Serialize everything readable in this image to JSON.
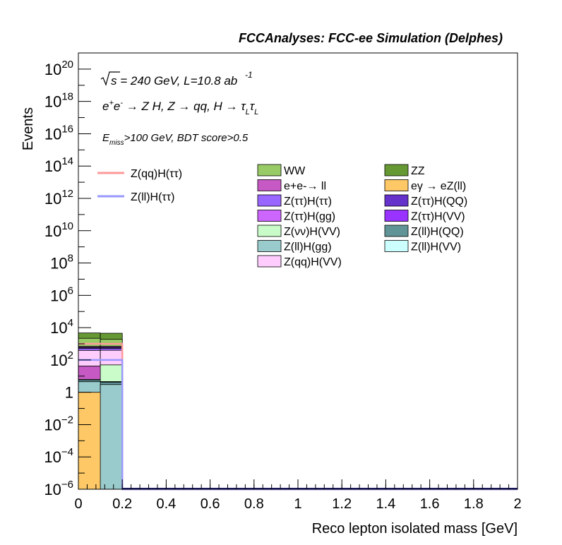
{
  "chart_data": {
    "type": "bar",
    "title": "FCCAnalyses: FCC-ee Simulation (Delphes)",
    "xlabel": "Reco lepton isolated mass [GeV]",
    "ylabel": "Events",
    "xlim": [
      0,
      2
    ],
    "ylim_log10": [
      -6,
      21
    ],
    "log_y": true,
    "x_ticks": [
      "0",
      "0.2",
      "0.4",
      "0.6",
      "0.8",
      "1",
      "1.2",
      "1.4",
      "1.6",
      "1.8",
      "2"
    ],
    "x_tick_values": [
      0,
      0.2,
      0.4,
      0.6,
      0.8,
      1,
      1.2,
      1.4,
      1.6,
      1.8,
      2
    ],
    "y_ticks": [
      {
        "v": -6,
        "base": "10",
        "exp": "−6"
      },
      {
        "v": -4,
        "base": "10",
        "exp": "−4"
      },
      {
        "v": -2,
        "base": "10",
        "exp": "−2"
      },
      {
        "v": 0,
        "base": "1",
        "exp": ""
      },
      {
        "v": 2,
        "base": "10",
        "exp": "2"
      },
      {
        "v": 4,
        "base": "10",
        "exp": "4"
      },
      {
        "v": 6,
        "base": "10",
        "exp": "6"
      },
      {
        "v": 8,
        "base": "10",
        "exp": "8"
      },
      {
        "v": 10,
        "base": "10",
        "exp": "10"
      },
      {
        "v": 12,
        "base": "10",
        "exp": "12"
      },
      {
        "v": 14,
        "base": "10",
        "exp": "14"
      },
      {
        "v": 16,
        "base": "10",
        "exp": "16"
      },
      {
        "v": 18,
        "base": "10",
        "exp": "18"
      },
      {
        "v": 20,
        "base": "10",
        "exp": "20"
      }
    ],
    "annotations": {
      "line1_prefix": "s = 240 GeV, L=10.8 ab",
      "line1_sup": "-1",
      "line2": "e+e- → Z H, Z → qq, H → τLτL",
      "line3_main": "E",
      "line3_sub": "miss",
      "line3_rest": ">100 GeV, BDT score>0.5"
    },
    "bins": [
      0,
      0.1,
      0.2
    ],
    "stack_series": [
      {
        "name": "eγ → eZ(ll)",
        "color": "#fdc865",
        "values": [
          1,
          0
        ]
      },
      {
        "name": "Z(ll)H(gg)",
        "color": "#99cbcc",
        "values": [
          3.5,
          3
        ]
      },
      {
        "name": "Z(ll)H(QQ)",
        "color": "#609497",
        "values": [
          1.3,
          1.2
        ]
      },
      {
        "name": "Z(ll)H(VV)",
        "color": "#ccfefe",
        "values": [
          0.5,
          0.4
        ]
      },
      {
        "name": "e+e-→ ll",
        "color": "#c759c5",
        "values": [
          35,
          0
        ]
      },
      {
        "name": "Z(νν)H(VV)",
        "color": "#c9fcc9",
        "values": [
          0,
          45
        ]
      },
      {
        "name": "Z(qq)H(VV)",
        "color": "#fecdfe",
        "values": [
          350,
          350
        ]
      },
      {
        "name": "Z(ττ)H(ττ)",
        "color": "#9966ff",
        "values": [
          120,
          120
        ]
      },
      {
        "name": "Z(ττ)H(QQ)",
        "color": "#6533cb",
        "values": [
          60,
          60
        ]
      },
      {
        "name": "Z(ττ)H(gg)",
        "color": "#cc66fe",
        "values": [
          80,
          80
        ]
      },
      {
        "name": "Z(ττ)H(VV)",
        "color": "#9933ff",
        "values": [
          40,
          40
        ]
      },
      {
        "name": "WW",
        "color": "#98cb66",
        "values": [
          1500,
          1200
        ]
      },
      {
        "name": "ZZ",
        "color": "#669933",
        "values": [
          2500,
          2600
        ]
      }
    ],
    "line_series": [
      {
        "name": "Z(qq)H(ττ)",
        "color": "#ff9999",
        "values": [
          1000,
          1000,
          1e-07,
          1e-07
        ]
      },
      {
        "name": "Z(ll)H(ττ)",
        "color": "#9999ff",
        "values": [
          100,
          100,
          1e-07,
          1e-07
        ]
      }
    ],
    "legend_lines": [
      {
        "label": "Z(qq)H(ττ)",
        "color": "#ff9999"
      },
      {
        "label": "Z(ll)H(ττ)",
        "color": "#9999ff"
      }
    ],
    "legend_boxes": [
      {
        "label": "WW",
        "color": "#98cb66"
      },
      {
        "label": "ZZ",
        "color": "#669933"
      },
      {
        "label": "e+e-→ ll",
        "color": "#c759c5"
      },
      {
        "label": "eγ → eZ(ll)",
        "color": "#fdc865"
      },
      {
        "label": "Z(ττ)H(ττ)",
        "color": "#9966ff"
      },
      {
        "label": "Z(ττ)H(QQ)",
        "color": "#6533cb"
      },
      {
        "label": "Z(ττ)H(gg)",
        "color": "#cc66fe"
      },
      {
        "label": "Z(ττ)H(VV)",
        "color": "#9933ff"
      },
      {
        "label": "Z(νν)H(VV)",
        "color": "#c9fcc9"
      },
      {
        "label": "Z(ll)H(QQ)",
        "color": "#609497"
      },
      {
        "label": "Z(ll)H(gg)",
        "color": "#99cbcc"
      },
      {
        "label": "Z(ll)H(VV)",
        "color": "#ccfefe"
      },
      {
        "label": "Z(qq)H(VV)",
        "color": "#fecdfe"
      }
    ]
  }
}
